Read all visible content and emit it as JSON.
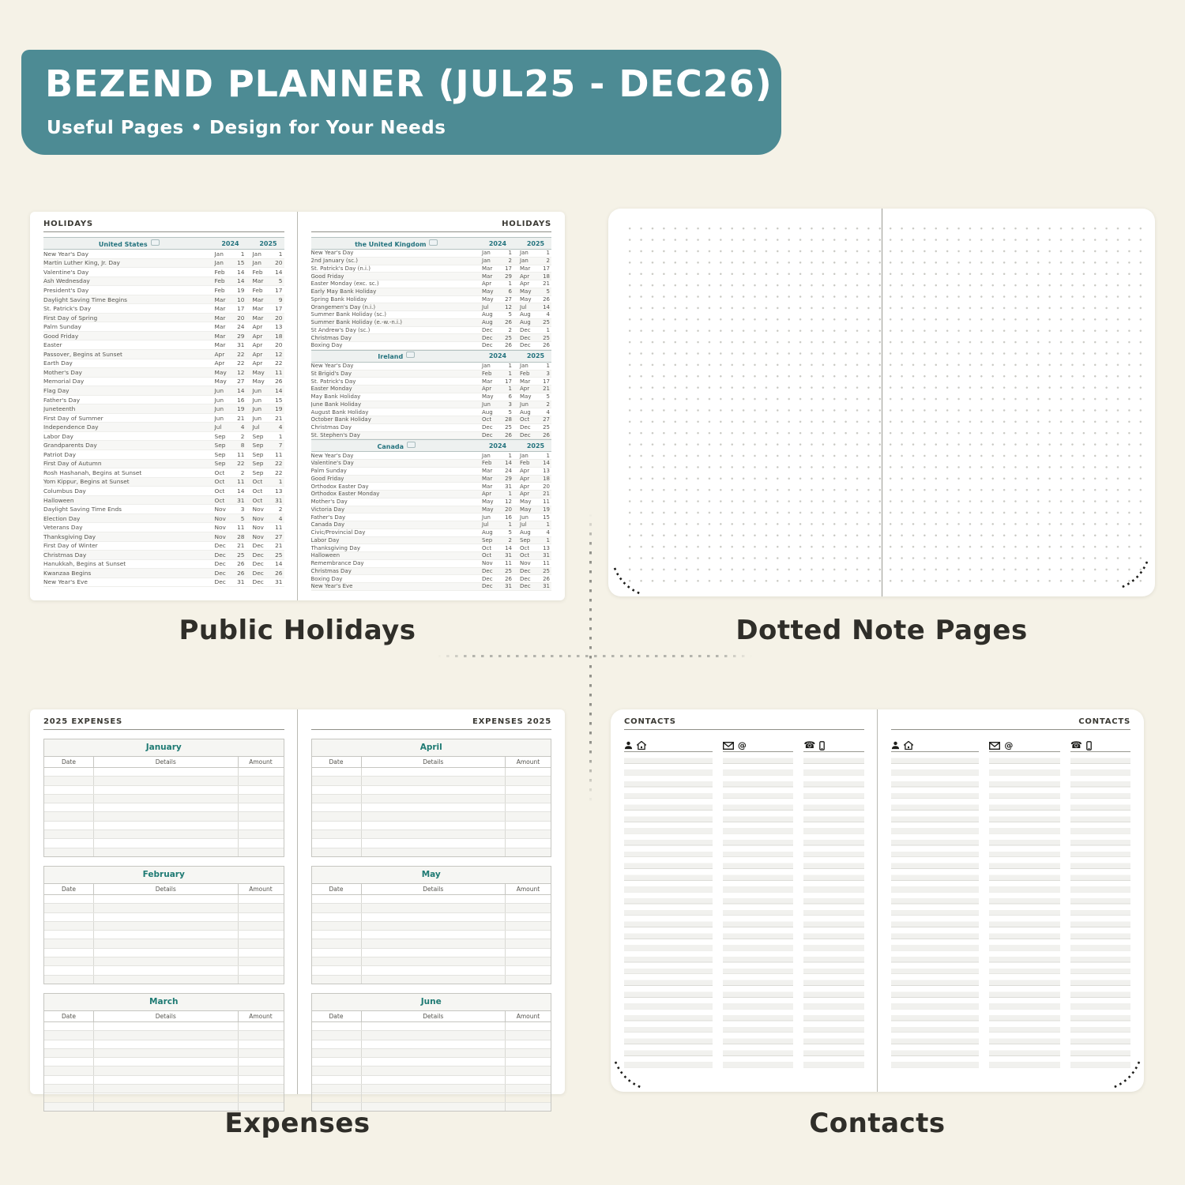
{
  "colors": {
    "banner_bg": "#4d8b94",
    "canvas_bg": "#f5f2e7",
    "section_teal": "#24737e",
    "month_teal": "#1e7a73",
    "label_text": "#2f2e29"
  },
  "banner": {
    "title": "BEZEND PLANNER (JUL25 - DEC26)",
    "subtitle": "Useful Pages  •  Design for Your Needs"
  },
  "section_labels": {
    "holidays": "Public Holidays",
    "dotted": "Dotted Note Pages",
    "expenses": "Expenses",
    "contacts": "Contacts"
  },
  "holidays": {
    "page_header": "HOLIDAYS",
    "year_left": "2024",
    "year_right": "2025",
    "sections": [
      {
        "id": "us",
        "country": "United States",
        "rows": [
          [
            "New Year's Day",
            "Jan",
            "1",
            "Jan",
            "1"
          ],
          [
            "Martin Luther King, Jr. Day",
            "Jan",
            "15",
            "Jan",
            "20"
          ],
          [
            "Valentine's Day",
            "Feb",
            "14",
            "Feb",
            "14"
          ],
          [
            "Ash Wednesday",
            "Feb",
            "14",
            "Mar",
            "5"
          ],
          [
            "President's Day",
            "Feb",
            "19",
            "Feb",
            "17"
          ],
          [
            "Daylight Saving Time Begins",
            "Mar",
            "10",
            "Mar",
            "9"
          ],
          [
            "St. Patrick's Day",
            "Mar",
            "17",
            "Mar",
            "17"
          ],
          [
            "First Day of Spring",
            "Mar",
            "20",
            "Mar",
            "20"
          ],
          [
            "Palm Sunday",
            "Mar",
            "24",
            "Apr",
            "13"
          ],
          [
            "Good Friday",
            "Mar",
            "29",
            "Apr",
            "18"
          ],
          [
            "Easter",
            "Mar",
            "31",
            "Apr",
            "20"
          ],
          [
            "Passover, Begins at Sunset",
            "Apr",
            "22",
            "Apr",
            "12"
          ],
          [
            "Earth Day",
            "Apr",
            "22",
            "Apr",
            "22"
          ],
          [
            "Mother's Day",
            "May",
            "12",
            "May",
            "11"
          ],
          [
            "Memorial Day",
            "May",
            "27",
            "May",
            "26"
          ],
          [
            "Flag Day",
            "Jun",
            "14",
            "Jun",
            "14"
          ],
          [
            "Father's Day",
            "Jun",
            "16",
            "Jun",
            "15"
          ],
          [
            "Juneteenth",
            "Jun",
            "19",
            "Jun",
            "19"
          ],
          [
            "First Day of Summer",
            "Jun",
            "21",
            "Jun",
            "21"
          ],
          [
            "Independence Day",
            "Jul",
            "4",
            "Jul",
            "4"
          ],
          [
            "Labor Day",
            "Sep",
            "2",
            "Sep",
            "1"
          ],
          [
            "Grandparents Day",
            "Sep",
            "8",
            "Sep",
            "7"
          ],
          [
            "Patriot Day",
            "Sep",
            "11",
            "Sep",
            "11"
          ],
          [
            "First Day of Autumn",
            "Sep",
            "22",
            "Sep",
            "22"
          ],
          [
            "Rosh Hashanah, Begins at Sunset",
            "Oct",
            "2",
            "Sep",
            "22"
          ],
          [
            "Yom Kippur, Begins at Sunset",
            "Oct",
            "11",
            "Oct",
            "1"
          ],
          [
            "Columbus Day",
            "Oct",
            "14",
            "Oct",
            "13"
          ],
          [
            "Halloween",
            "Oct",
            "31",
            "Oct",
            "31"
          ],
          [
            "Daylight Saving Time Ends",
            "Nov",
            "3",
            "Nov",
            "2"
          ],
          [
            "Election Day",
            "Nov",
            "5",
            "Nov",
            "4"
          ],
          [
            "Veterans Day",
            "Nov",
            "11",
            "Nov",
            "11"
          ],
          [
            "Thanksgiving Day",
            "Nov",
            "28",
            "Nov",
            "27"
          ],
          [
            "First Day of Winter",
            "Dec",
            "21",
            "Dec",
            "21"
          ],
          [
            "Christmas Day",
            "Dec",
            "25",
            "Dec",
            "25"
          ],
          [
            "Hanukkah, Begins at Sunset",
            "Dec",
            "26",
            "Dec",
            "14"
          ],
          [
            "Kwanzaa Begins",
            "Dec",
            "26",
            "Dec",
            "26"
          ],
          [
            "New Year's Eve",
            "Dec",
            "31",
            "Dec",
            "31"
          ]
        ]
      },
      {
        "id": "uk",
        "country": "the United Kingdom",
        "rows": [
          [
            "New Year's Day",
            "Jan",
            "1",
            "Jan",
            "1"
          ],
          [
            "2nd January (sc.)",
            "Jan",
            "2",
            "Jan",
            "2"
          ],
          [
            "St. Patrick's Day (n.i.)",
            "Mar",
            "17",
            "Mar",
            "17"
          ],
          [
            "Good Friday",
            "Mar",
            "29",
            "Apr",
            "18"
          ],
          [
            "Easter Monday (exc. sc.)",
            "Apr",
            "1",
            "Apr",
            "21"
          ],
          [
            "Early May Bank Holiday",
            "May",
            "6",
            "May",
            "5"
          ],
          [
            "Spring Bank Holiday",
            "May",
            "27",
            "May",
            "26"
          ],
          [
            "Orangemen's Day (n.i.)",
            "Jul",
            "12",
            "Jul",
            "14"
          ],
          [
            "Summer Bank Holiday (sc.)",
            "Aug",
            "5",
            "Aug",
            "4"
          ],
          [
            "Summer Bank Holiday (e.-w.-n.i.)",
            "Aug",
            "26",
            "Aug",
            "25"
          ],
          [
            "St Andrew's Day (sc.)",
            "Dec",
            "2",
            "Dec",
            "1"
          ],
          [
            "Christmas Day",
            "Dec",
            "25",
            "Dec",
            "25"
          ],
          [
            "Boxing Day",
            "Dec",
            "26",
            "Dec",
            "26"
          ]
        ]
      },
      {
        "id": "ireland",
        "country": "Ireland",
        "rows": [
          [
            "New Year's Day",
            "Jan",
            "1",
            "Jan",
            "1"
          ],
          [
            "St Brigid's Day",
            "Feb",
            "1",
            "Feb",
            "3"
          ],
          [
            "St. Patrick's Day",
            "Mar",
            "17",
            "Mar",
            "17"
          ],
          [
            "Easter Monday",
            "Apr",
            "1",
            "Apr",
            "21"
          ],
          [
            "May Bank Holiday",
            "May",
            "6",
            "May",
            "5"
          ],
          [
            "June Bank Holiday",
            "Jun",
            "3",
            "Jun",
            "2"
          ],
          [
            "August Bank Holiday",
            "Aug",
            "5",
            "Aug",
            "4"
          ],
          [
            "October Bank Holiday",
            "Oct",
            "28",
            "Oct",
            "27"
          ],
          [
            "Christmas Day",
            "Dec",
            "25",
            "Dec",
            "25"
          ],
          [
            "St. Stephen's Day",
            "Dec",
            "26",
            "Dec",
            "26"
          ]
        ]
      },
      {
        "id": "canada",
        "country": "Canada",
        "rows": [
          [
            "New Year's Day",
            "Jan",
            "1",
            "Jan",
            "1"
          ],
          [
            "Valentine's Day",
            "Feb",
            "14",
            "Feb",
            "14"
          ],
          [
            "Palm Sunday",
            "Mar",
            "24",
            "Apr",
            "13"
          ],
          [
            "Good Friday",
            "Mar",
            "29",
            "Apr",
            "18"
          ],
          [
            "Orthodox Easter Day",
            "Mar",
            "31",
            "Apr",
            "20"
          ],
          [
            "Orthodox Easter Monday",
            "Apr",
            "1",
            "Apr",
            "21"
          ],
          [
            "Mother's Day",
            "May",
            "12",
            "May",
            "11"
          ],
          [
            "Victoria Day",
            "May",
            "20",
            "May",
            "19"
          ],
          [
            "Father's Day",
            "Jun",
            "16",
            "Jun",
            "15"
          ],
          [
            "Canada Day",
            "Jul",
            "1",
            "Jul",
            "1"
          ],
          [
            "Civic/Provincial Day",
            "Aug",
            "5",
            "Aug",
            "4"
          ],
          [
            "Labor Day",
            "Sep",
            "2",
            "Sep",
            "1"
          ],
          [
            "Thanksgiving Day",
            "Oct",
            "14",
            "Oct",
            "13"
          ],
          [
            "Halloween",
            "Oct",
            "31",
            "Oct",
            "31"
          ],
          [
            "Remembrance Day",
            "Nov",
            "11",
            "Nov",
            "11"
          ],
          [
            "Christmas Day",
            "Dec",
            "25",
            "Dec",
            "25"
          ],
          [
            "Boxing Day",
            "Dec",
            "26",
            "Dec",
            "26"
          ],
          [
            "New Year's Eve",
            "Dec",
            "31",
            "Dec",
            "31"
          ]
        ]
      }
    ]
  },
  "expenses": {
    "left_header": "2025 EXPENSES",
    "right_header": "EXPENSES 2025",
    "columns": [
      "Date",
      "Details",
      "Amount"
    ],
    "left_months": [
      "January",
      "February",
      "March"
    ],
    "right_months": [
      "April",
      "May",
      "June"
    ],
    "rows_per_table": 10
  },
  "contacts": {
    "left_header": "CONTACTS",
    "right_header": "CONTACTS",
    "columns": [
      {
        "icons": [
          "person-icon",
          "home-icon"
        ]
      },
      {
        "icons": [
          "envelope-icon",
          "at-icon"
        ]
      },
      {
        "icons": [
          "phone-icon",
          "mobile-icon"
        ]
      }
    ]
  }
}
